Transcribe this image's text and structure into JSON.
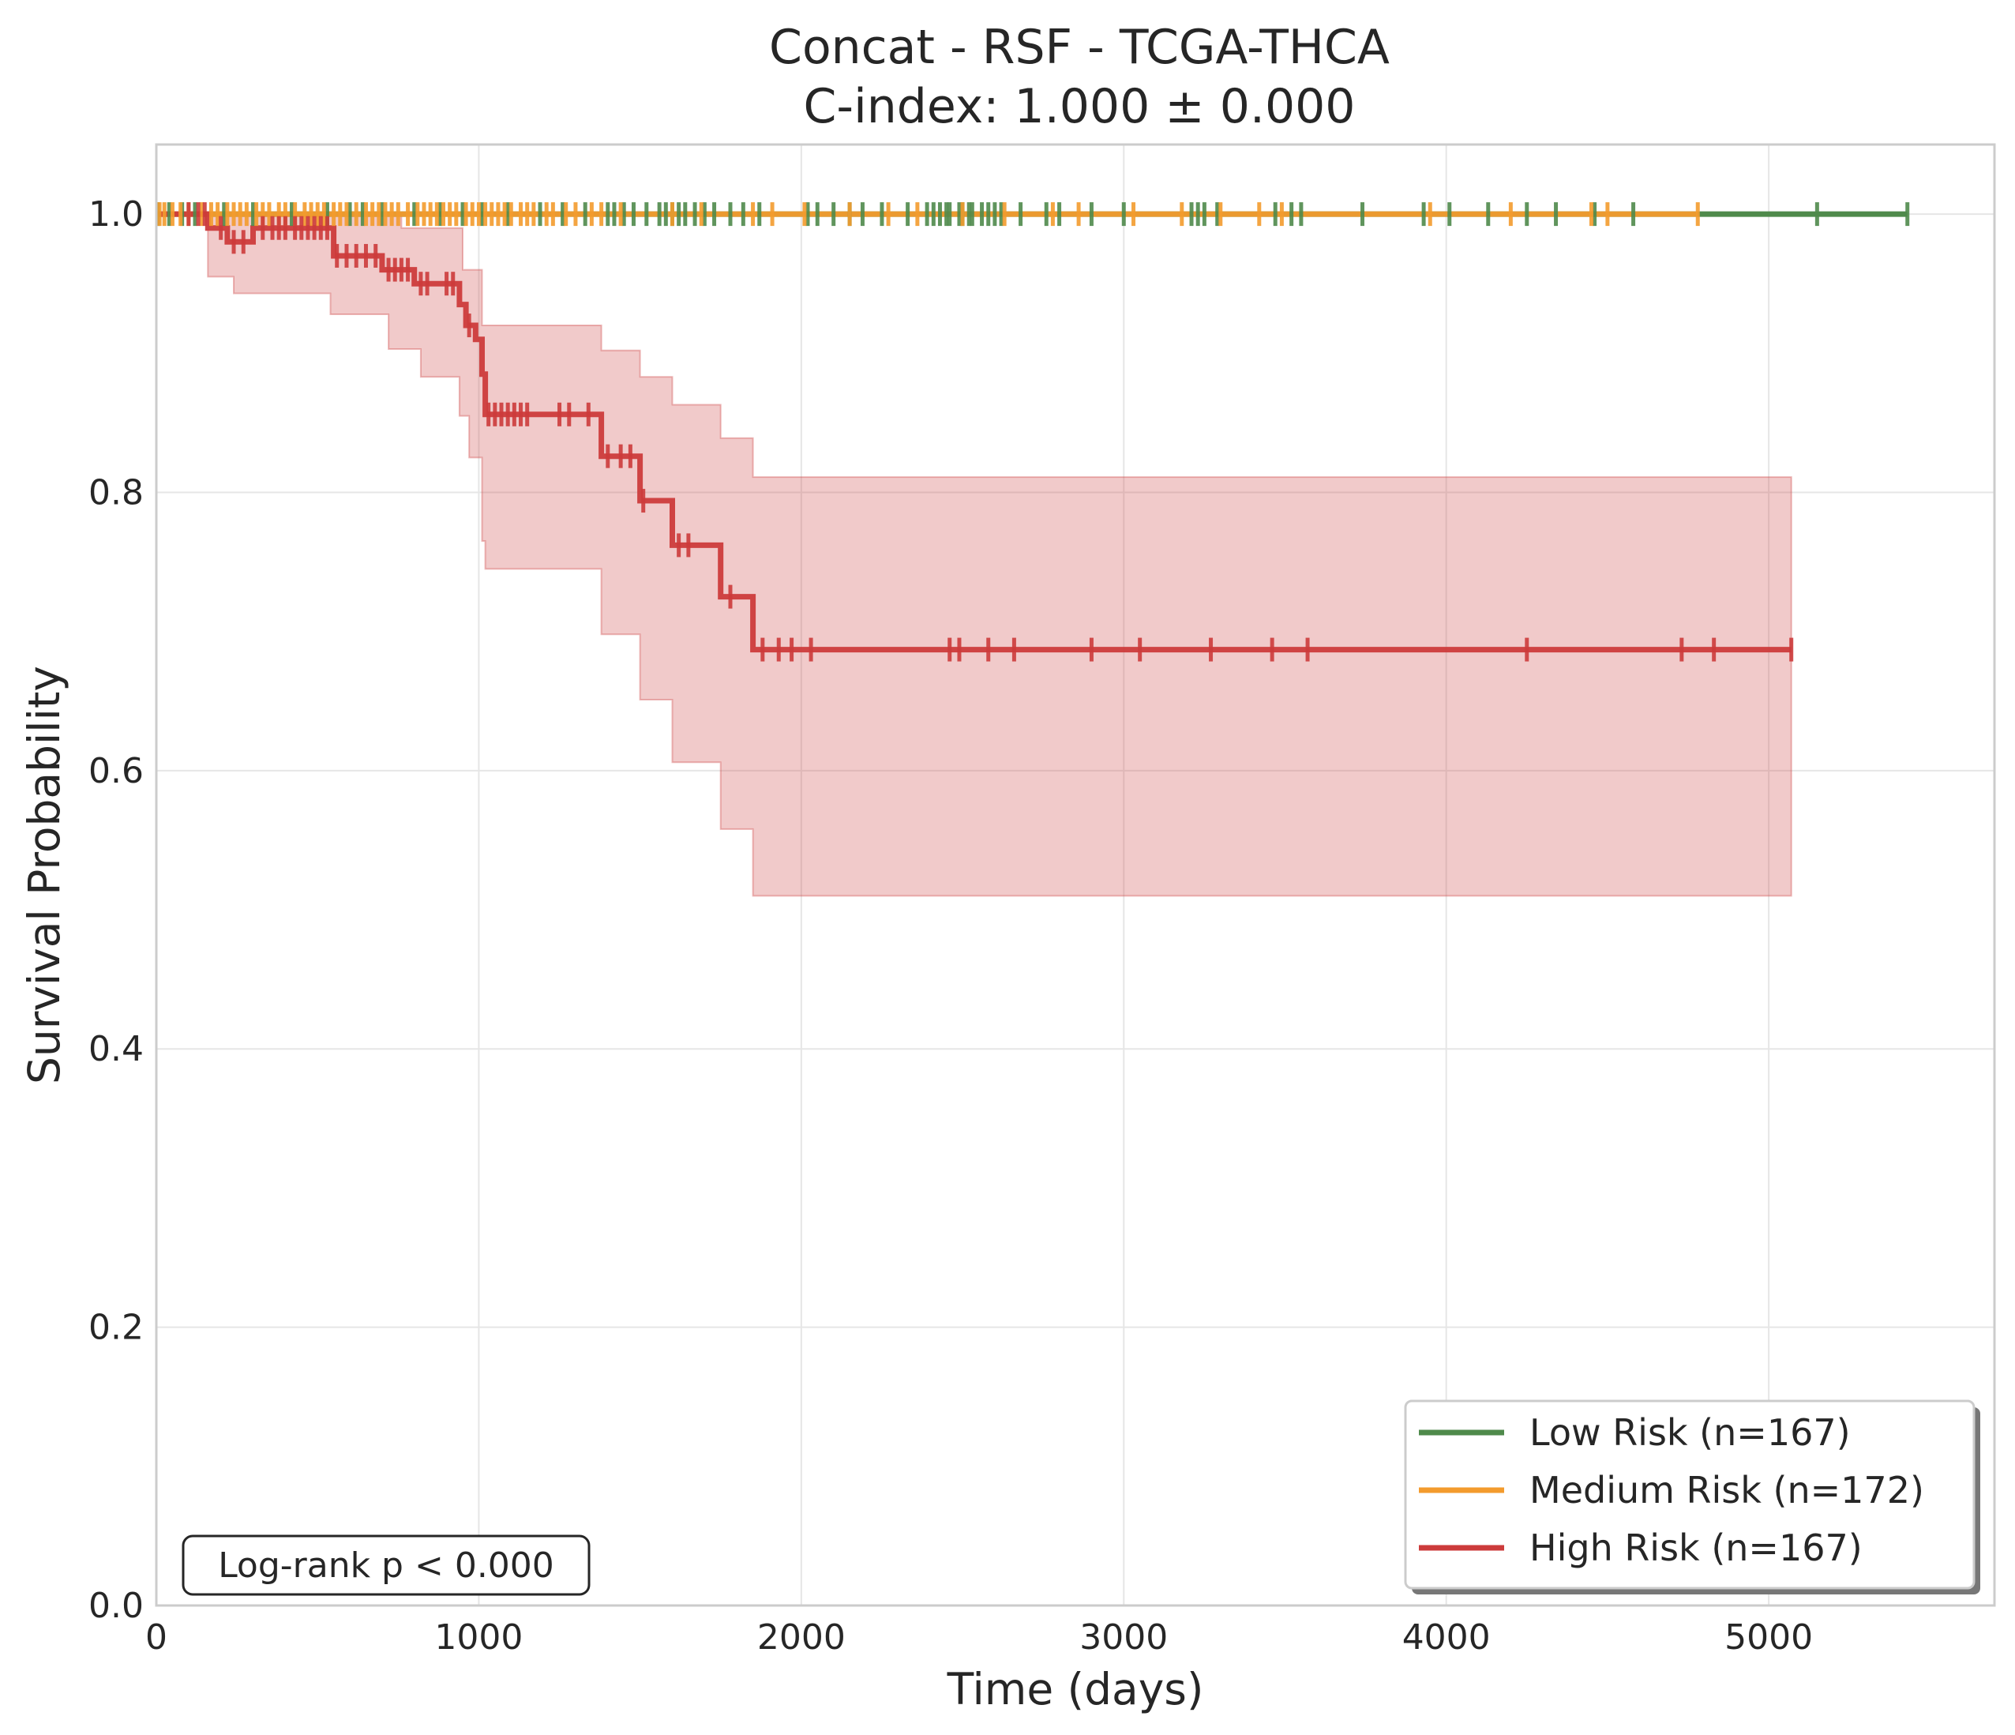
{
  "chart_data": {
    "type": "line",
    "title": "Concat - RSF - TCGA-THCA",
    "subtitle": "C-index: 1.000 ± 0.000",
    "xlabel": "Time (days)",
    "ylabel": "Survival Probability",
    "xlim": [
      0,
      5700
    ],
    "ylim": [
      0,
      1.05
    ],
    "x_ticks": [
      0,
      1000,
      2000,
      3000,
      4000,
      5000
    ],
    "y_ticks": [
      0.0,
      0.2,
      0.4,
      0.6,
      0.8,
      1.0
    ],
    "x_tick_labels": [
      "0",
      "1000",
      "2000",
      "3000",
      "4000",
      "5000"
    ],
    "y_tick_labels": [
      "0.0",
      "0.2",
      "0.4",
      "0.6",
      "0.8",
      "1.0"
    ],
    "grid": true,
    "legend_position": "lower-right",
    "annotation": "Log-rank p < 0.000",
    "series": [
      {
        "name": "Low Risk (n=167)",
        "color": "#4f8a4b",
        "steps": [
          [
            0,
            1.0
          ],
          [
            5430,
            1.0
          ]
        ],
        "censor_times": [
          5,
          40,
          80,
          120,
          210,
          300,
          420,
          530,
          600,
          640,
          700,
          800,
          880,
          950,
          1010,
          1090,
          1190,
          1260,
          1330,
          1400,
          1420,
          1450,
          1480,
          1520,
          1560,
          1580,
          1600,
          1620,
          1640,
          1670,
          1700,
          1730,
          1780,
          1820,
          1870,
          2020,
          2050,
          2100,
          2150,
          2190,
          2250,
          2330,
          2390,
          2410,
          2430,
          2450,
          2460,
          2490,
          2500,
          2520,
          2530,
          2560,
          2580,
          2600,
          2620,
          2680,
          2760,
          2800,
          2900,
          3000,
          3210,
          3230,
          3250,
          3290,
          3470,
          3520,
          3550,
          3740,
          3930,
          4010,
          4130,
          4250,
          4340,
          4460,
          4580,
          5150,
          5430
        ]
      },
      {
        "name": "Medium Risk (n=172)",
        "color": "#f39b2d",
        "steps": [
          [
            0,
            1.0
          ],
          [
            4780,
            1.0
          ]
        ],
        "censor_times": [
          10,
          25,
          50,
          75,
          100,
          140,
          170,
          190,
          220,
          240,
          260,
          280,
          310,
          330,
          350,
          380,
          400,
          430,
          460,
          480,
          500,
          520,
          550,
          570,
          590,
          620,
          650,
          670,
          690,
          710,
          730,
          750,
          780,
          810,
          830,
          850,
          870,
          890,
          910,
          930,
          960,
          980,
          1000,
          1020,
          1040,
          1060,
          1080,
          1100,
          1130,
          1150,
          1170,
          1210,
          1230,
          1270,
          1300,
          1350,
          1380,
          1440,
          1600,
          1690,
          1850,
          1910,
          2010,
          2150,
          2270,
          2360,
          2500,
          2630,
          2780,
          2860,
          3030,
          3180,
          3300,
          3420,
          3490,
          3950,
          4200,
          4450,
          4500,
          4780
        ]
      },
      {
        "name": "High Risk (n=167)",
        "color": "#cc3b3b",
        "steps": [
          [
            0,
            1.0
          ],
          [
            160,
            1.0
          ],
          [
            160,
            0.99
          ],
          [
            220,
            0.99
          ],
          [
            220,
            0.98
          ],
          [
            300,
            0.98
          ],
          [
            300,
            0.99
          ],
          [
            550,
            0.99
          ],
          [
            550,
            0.97
          ],
          [
            700,
            0.97
          ],
          [
            700,
            0.96
          ],
          [
            800,
            0.96
          ],
          [
            800,
            0.95
          ],
          [
            940,
            0.95
          ],
          [
            940,
            0.935
          ],
          [
            960,
            0.935
          ],
          [
            960,
            0.92
          ],
          [
            990,
            0.92
          ],
          [
            990,
            0.91
          ],
          [
            1010,
            0.91
          ],
          [
            1010,
            0.885
          ],
          [
            1020,
            0.885
          ],
          [
            1020,
            0.856
          ],
          [
            1380,
            0.856
          ],
          [
            1380,
            0.826
          ],
          [
            1500,
            0.826
          ],
          [
            1500,
            0.794
          ],
          [
            1600,
            0.794
          ],
          [
            1600,
            0.762
          ],
          [
            1750,
            0.762
          ],
          [
            1750,
            0.725
          ],
          [
            1850,
            0.725
          ],
          [
            1850,
            0.687
          ],
          [
            5070,
            0.687
          ]
        ],
        "ci_lower": [
          [
            0,
            1.0
          ],
          [
            160,
            1.0
          ],
          [
            160,
            0.955
          ],
          [
            240,
            0.955
          ],
          [
            240,
            0.943
          ],
          [
            540,
            0.943
          ],
          [
            540,
            0.928
          ],
          [
            720,
            0.928
          ],
          [
            720,
            0.903
          ],
          [
            820,
            0.903
          ],
          [
            820,
            0.883
          ],
          [
            940,
            0.883
          ],
          [
            940,
            0.855
          ],
          [
            970,
            0.855
          ],
          [
            970,
            0.825
          ],
          [
            1010,
            0.825
          ],
          [
            1010,
            0.765
          ],
          [
            1020,
            0.765
          ],
          [
            1020,
            0.745
          ],
          [
            1380,
            0.745
          ],
          [
            1380,
            0.698
          ],
          [
            1500,
            0.698
          ],
          [
            1500,
            0.651
          ],
          [
            1600,
            0.651
          ],
          [
            1600,
            0.606
          ],
          [
            1750,
            0.606
          ],
          [
            1750,
            0.558
          ],
          [
            1850,
            0.558
          ],
          [
            1850,
            0.51
          ],
          [
            5070,
            0.51
          ]
        ],
        "ci_upper": [
          [
            0,
            1.0
          ],
          [
            760,
            1.0
          ],
          [
            760,
            0.99
          ],
          [
            950,
            0.99
          ],
          [
            950,
            0.96
          ],
          [
            1010,
            0.96
          ],
          [
            1010,
            0.92
          ],
          [
            1380,
            0.92
          ],
          [
            1380,
            0.902
          ],
          [
            1500,
            0.902
          ],
          [
            1500,
            0.883
          ],
          [
            1600,
            0.883
          ],
          [
            1600,
            0.863
          ],
          [
            1750,
            0.863
          ],
          [
            1750,
            0.839
          ],
          [
            1850,
            0.839
          ],
          [
            1850,
            0.811
          ],
          [
            5070,
            0.811
          ]
        ],
        "censor_points": [
          [
            100,
            1.0
          ],
          [
            130,
            1.0
          ],
          [
            150,
            1.0
          ],
          [
            200,
            0.99
          ],
          [
            240,
            0.98
          ],
          [
            270,
            0.98
          ],
          [
            330,
            0.99
          ],
          [
            360,
            0.99
          ],
          [
            380,
            0.99
          ],
          [
            400,
            0.99
          ],
          [
            430,
            0.99
          ],
          [
            450,
            0.99
          ],
          [
            470,
            0.99
          ],
          [
            490,
            0.99
          ],
          [
            510,
            0.99
          ],
          [
            530,
            0.99
          ],
          [
            560,
            0.97
          ],
          [
            590,
            0.97
          ],
          [
            620,
            0.97
          ],
          [
            650,
            0.97
          ],
          [
            680,
            0.97
          ],
          [
            720,
            0.96
          ],
          [
            740,
            0.96
          ],
          [
            760,
            0.96
          ],
          [
            780,
            0.96
          ],
          [
            820,
            0.95
          ],
          [
            840,
            0.95
          ],
          [
            900,
            0.95
          ],
          [
            920,
            0.95
          ],
          [
            970,
            0.92
          ],
          [
            1030,
            0.856
          ],
          [
            1050,
            0.856
          ],
          [
            1070,
            0.856
          ],
          [
            1090,
            0.856
          ],
          [
            1110,
            0.856
          ],
          [
            1130,
            0.856
          ],
          [
            1150,
            0.856
          ],
          [
            1250,
            0.856
          ],
          [
            1280,
            0.856
          ],
          [
            1340,
            0.856
          ],
          [
            1400,
            0.826
          ],
          [
            1440,
            0.826
          ],
          [
            1470,
            0.826
          ],
          [
            1510,
            0.794
          ],
          [
            1620,
            0.762
          ],
          [
            1650,
            0.762
          ],
          [
            1780,
            0.725
          ],
          [
            1880,
            0.687
          ],
          [
            1930,
            0.687
          ],
          [
            1970,
            0.687
          ],
          [
            2030,
            0.687
          ],
          [
            2460,
            0.687
          ],
          [
            2490,
            0.687
          ],
          [
            2580,
            0.687
          ],
          [
            2660,
            0.687
          ],
          [
            2900,
            0.687
          ],
          [
            3050,
            0.687
          ],
          [
            3270,
            0.687
          ],
          [
            3460,
            0.687
          ],
          [
            3570,
            0.687
          ],
          [
            4250,
            0.687
          ],
          [
            4730,
            0.687
          ],
          [
            4830,
            0.687
          ],
          [
            5070,
            0.687
          ]
        ]
      }
    ]
  }
}
